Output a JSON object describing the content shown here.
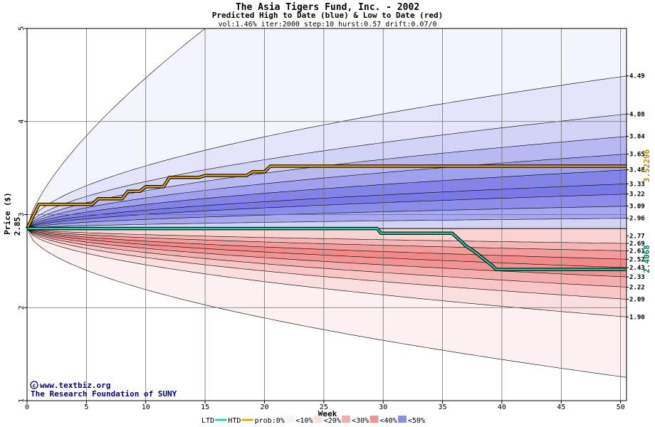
{
  "chart_data": {
    "type": "area",
    "title": "The Asia Tigers Fund, Inc. - 2002",
    "subtitle": "Predicted High to Date (blue) &  Low to Date (red)",
    "params": "vol:1.46% iter:2000 step:10 hurst:0.57 drift:0.07/0",
    "xlabel": "Week",
    "ylabel": "Price ($)",
    "xlim": [
      0,
      50.5
    ],
    "ylim": [
      1,
      5
    ],
    "x_ticks": [
      0,
      5,
      10,
      15,
      20,
      25,
      30,
      35,
      40,
      45,
      50
    ],
    "y_ticks": [
      1,
      2,
      3,
      4,
      5
    ],
    "grid": true,
    "start_price": 2.85,
    "start_price_label": "2.85",
    "htd_final_label": "3.52296",
    "ltd_final_label": "2.4068",
    "right_labels": [
      "4.49",
      "4.08",
      "3.84",
      "3.65",
      "3.48",
      "3.33",
      "3.22",
      "3.09",
      "2.96",
      "2.77",
      "2.69",
      "2.61",
      "2.52",
      "2.43",
      "2.33",
      "2.22",
      "2.09",
      "1.90"
    ],
    "high_bands": [
      {
        "final": 5.0,
        "color": "#f4f4fd"
      },
      {
        "final": 4.49,
        "color": "#e4e4fa"
      },
      {
        "final": 4.08,
        "color": "#d3d3f7"
      },
      {
        "final": 3.84,
        "color": "#b8b8f2"
      },
      {
        "final": 3.65,
        "color": "#a0a0ee"
      },
      {
        "final": 3.48,
        "color": "#8484e8"
      },
      {
        "final": 3.33,
        "color": "#7a7ae6"
      },
      {
        "final": 3.22,
        "color": "#8c8cea"
      },
      {
        "final": 3.09,
        "color": "#a8a8f0"
      },
      {
        "final": 2.96,
        "color": "#d3d3f7"
      }
    ],
    "low_bands": [
      {
        "final": 1.25,
        "color": "#fdf0f0"
      },
      {
        "final": 1.9,
        "color": "#fbdede"
      },
      {
        "final": 2.09,
        "color": "#f8c6c6"
      },
      {
        "final": 2.22,
        "color": "#f5aeae"
      },
      {
        "final": 2.33,
        "color": "#f39494"
      },
      {
        "final": 2.43,
        "color": "#f28a8a"
      },
      {
        "final": 2.52,
        "color": "#f39c9c"
      },
      {
        "final": 2.61,
        "color": "#f6b6b6"
      },
      {
        "final": 2.69,
        "color": "#f9d2d2"
      }
    ],
    "htd_line": {
      "name": "HTD",
      "color": "#e8a800",
      "x": [
        0,
        1,
        5.5,
        6,
        8,
        8.5,
        9.5,
        10,
        11.5,
        12,
        14.5,
        15,
        18.5,
        19,
        20,
        20.5,
        50.5
      ],
      "y": [
        2.85,
        3.11,
        3.11,
        3.17,
        3.17,
        3.25,
        3.25,
        3.3,
        3.3,
        3.4,
        3.4,
        3.42,
        3.42,
        3.46,
        3.46,
        3.52,
        3.52
      ]
    },
    "ltd_line": {
      "name": "LTD",
      "color": "#18d8b0",
      "x": [
        0,
        29.5,
        29.8,
        35.8,
        36.5,
        37,
        37.5,
        38,
        38.5,
        39.2,
        39.5,
        50.5
      ],
      "y": [
        2.85,
        2.85,
        2.8,
        2.8,
        2.72,
        2.66,
        2.62,
        2.57,
        2.52,
        2.45,
        2.41,
        2.41
      ]
    },
    "legend": {
      "ltd": "LTD",
      "htd": "HTD",
      "prob": "prob:0%",
      "items": [
        "<10%",
        "<20%",
        "<30%",
        "<40%",
        "<50%"
      ],
      "colors": [
        "#fdf0f0",
        "#fbdede",
        "#f5aeae",
        "#f39494",
        "#8c8cea"
      ]
    }
  },
  "credits": {
    "site": "www.textbiz.org",
    "org": "The Research Foundation of SUNY"
  }
}
